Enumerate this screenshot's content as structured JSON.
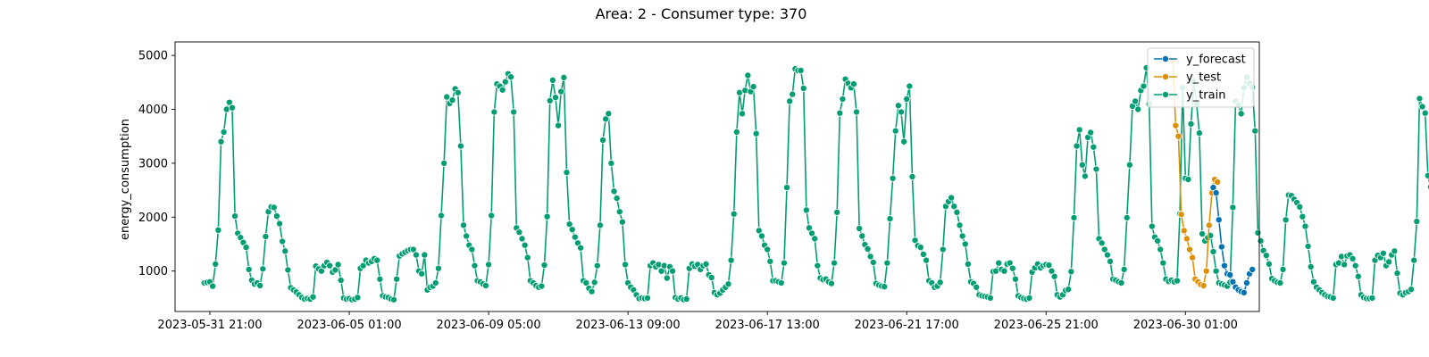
{
  "chart_data": {
    "type": "line",
    "title": "Area: 2 - Consumer type: 370",
    "xlabel": "",
    "ylabel": "energy_consumption",
    "xlim": [
      "2023-05-30 20:00",
      "2023-07-02 06:00"
    ],
    "ylim": [
      250,
      5250
    ],
    "x_ticks": [
      "2023-05-31 21:00",
      "2023-06-05 01:00",
      "2023-06-09 05:00",
      "2023-06-13 09:00",
      "2023-06-17 13:00",
      "2023-06-21 17:00",
      "2023-06-25 21:00",
      "2023-06-30 01:00"
    ],
    "y_ticks": [
      1000,
      2000,
      3000,
      4000,
      5000
    ],
    "grid": false,
    "legend_position": "top-right",
    "sample_interval_hours": 2,
    "series": [
      {
        "name": "y_forecast",
        "color": "#0173b2",
        "start": "2023-06-30 21:00",
        "values": [
          2550,
          2450,
          1950,
          1450,
          1100,
          950,
          930,
          800,
          700,
          650,
          620,
          600,
          780,
          950,
          1030
        ]
      },
      {
        "name": "y_test",
        "color": "#de8f05",
        "start": "2023-06-29 16:00",
        "values": [
          4900,
          3700,
          3500,
          2050,
          1750,
          1600,
          1400,
          1250,
          850,
          800,
          750,
          730,
          1000,
          1850,
          2450,
          2700,
          2650
        ]
      },
      {
        "name": "y_train",
        "color": "#029e73",
        "start": "2023-05-31 17:00",
        "values": [
          780,
          790,
          800,
          720,
          1130,
          1760,
          3400,
          3580,
          4000,
          4130,
          4030,
          2020,
          1700,
          1620,
          1530,
          1440,
          1030,
          830,
          760,
          780,
          730,
          1040,
          1640,
          2100,
          2190,
          2180,
          2020,
          1880,
          1550,
          1370,
          1020,
          690,
          650,
          610,
          560,
          510,
          480,
          490,
          480,
          520,
          1090,
          1040,
          1000,
          1100,
          1160,
          1100,
          980,
          1020,
          1120,
          830,
          500,
          480,
          490,
          470,
          480,
          510,
          1050,
          1100,
          1200,
          1150,
          1180,
          1230,
          1200,
          850,
          540,
          520,
          510,
          480,
          470,
          850,
          1280,
          1320,
          1350,
          1380,
          1400,
          1400,
          1300,
          1000,
          950,
          1300,
          650,
          700,
          720,
          780,
          1050,
          2030,
          3000,
          4230,
          4110,
          4170,
          4380,
          4310,
          3320,
          1850,
          1650,
          1480,
          1400,
          1100,
          820,
          800,
          760,
          730,
          1120,
          2030,
          3950,
          4470,
          4430,
          4360,
          4510,
          4660,
          4600,
          3950,
          1800,
          1720,
          1600,
          1480,
          1250,
          820,
          780,
          730,
          700,
          720,
          1110,
          2010,
          4160,
          4540,
          4220,
          3700,
          4330,
          4590,
          2830,
          1870,
          1770,
          1630,
          1520,
          1430,
          820,
          780,
          680,
          620,
          790,
          1100,
          1850,
          3430,
          3820,
          3920,
          3000,
          2480,
          2350,
          2100,
          1910,
          1120,
          780,
          700,
          650,
          560,
          490,
          500,
          490,
          500,
          1100,
          1150,
          1080,
          1120,
          1000,
          1100,
          870,
          1080,
          1000,
          510,
          480,
          500,
          470,
          480,
          1050,
          1130,
          1090,
          1120,
          1030,
          1100,
          1130,
          930,
          880,
          600,
          560,
          590,
          650,
          700,
          760,
          1200,
          2060,
          3580,
          4310,
          3920,
          4350,
          4630,
          4330,
          4420,
          3550,
          1750,
          1650,
          1480,
          1400,
          1180,
          820,
          820,
          800,
          780,
          1150,
          2550,
          4150,
          4280,
          4750,
          4720,
          4720,
          4390,
          2130,
          1800,
          1700,
          1600,
          1100,
          870,
          840,
          850,
          800,
          770,
          1150,
          2090,
          3930,
          4190,
          4560,
          4480,
          4400,
          4470,
          3950,
          1790,
          1650,
          1490,
          1410,
          1270,
          1160,
          770,
          740,
          720,
          710,
          1150,
          1970,
          2720,
          3600,
          4070,
          3950,
          3400,
          4190,
          4430,
          2750,
          1570,
          1470,
          1440,
          1310,
          1200,
          820,
          780,
          700,
          720,
          790,
          1400,
          2200,
          2290,
          2360,
          2200,
          2090,
          1850,
          1650,
          1500,
          1130,
          800,
          770,
          700,
          560,
          540,
          530,
          520,
          500,
          990,
          1000,
          1150,
          1030,
          1000,
          1130,
          1150,
          1050,
          850,
          540,
          510,
          490,
          480,
          500,
          980,
          1060,
          1130,
          1060,
          1100,
          1120,
          1110,
          1000,
          900,
          560,
          520,
          560,
          640,
          660,
          990,
          1990,
          3320,
          3620,
          2970,
          2760,
          3480,
          3570,
          3300,
          2890,
          1600,
          1520,
          1400,
          1300,
          1180,
          850,
          830,
          800,
          780,
          1030,
          1990,
          2970,
          4060,
          4150,
          4000,
          4350,
          4430,
          4770,
          4100,
          1830,
          1630,
          1560,
          1400,
          1150,
          850,
          810,
          830,
          800,
          820,
          2060,
          4400,
          2720,
          2700,
          3730,
          4520,
          4100,
          3560,
          1690,
          1560,
          1620,
          1660,
          1360,
          1000,
          780,
          760,
          740,
          720,
          790,
          2180,
          4150,
          4080,
          3920,
          4400,
          4600,
          4480,
          4410,
          3600,
          1710,
          1560,
          1380,
          1290,
          1130,
          860,
          820,
          790,
          780,
          1030,
          1950,
          2410,
          2400,
          2330,
          2270,
          2190,
          2010,
          1830,
          1460,
          1080,
          800,
          700,
          650,
          600,
          560,
          530,
          520,
          500,
          1120,
          1150,
          1270,
          1120,
          1280,
          1300,
          1230,
          1100,
          900,
          560,
          510,
          490,
          490,
          500,
          1200,
          1290,
          1250,
          1330,
          1100,
          1170,
          1300,
          1370,
          960,
          590,
          560,
          600,
          620,
          660,
          1200,
          1920,
          4200,
          4050,
          3930,
          2770,
          2560,
          4380,
          4880,
          3930,
          2000,
          1730,
          1500,
          1390,
          1390,
          890,
          850,
          810,
          790,
          1150,
          2150,
          4000,
          4320,
          4980,
          4760,
          5020,
          4180,
          3600,
          1840,
          1700,
          1520,
          1400,
          1220,
          860,
          810,
          780,
          750,
          820,
          1240,
          2280,
          4220,
          4830,
          4850,
          4920,
          4650,
          3630,
          4100,
          1950,
          1870,
          1750,
          1680,
          1290,
          950,
          820,
          800,
          790,
          850,
          1320,
          2200,
          3810,
          4400,
          4850
        ]
      }
    ]
  }
}
